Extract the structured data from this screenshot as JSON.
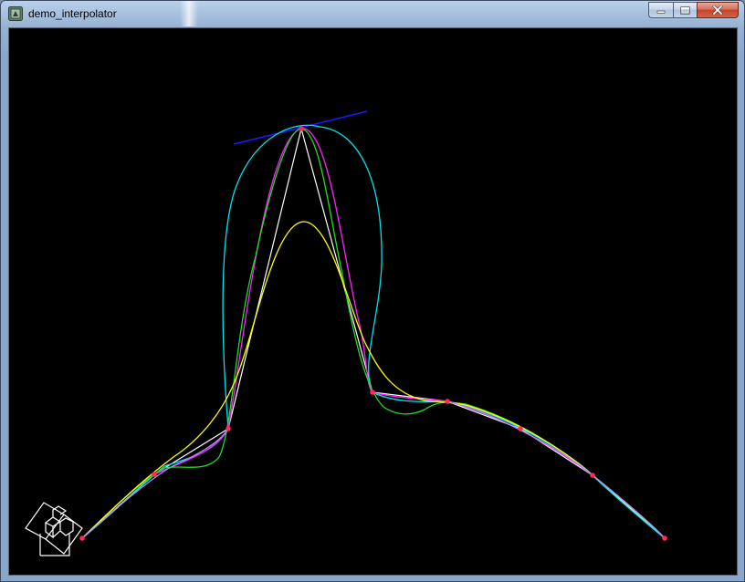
{
  "window": {
    "title": "demo_interpolator",
    "app_icon": "app-window-icon",
    "buttons": {
      "minimize_icon": "minimize-icon",
      "maximize_icon": "maximize-icon",
      "close_icon": "close-icon"
    }
  },
  "canvas": {
    "background": "#000000",
    "colors": {
      "control_polyline": "#ffffff",
      "control_point": "#ff2a55",
      "tangent": "#1a1aff",
      "curve_cyan": "#00e5ee",
      "curve_magenta": "#ff22ff",
      "curve_green": "#22dd22",
      "curve_yellow": "#ffff00",
      "curve_lavender": "#b48cff"
    },
    "gizmo_icon": "axis-cube-gizmo-icon"
  }
}
